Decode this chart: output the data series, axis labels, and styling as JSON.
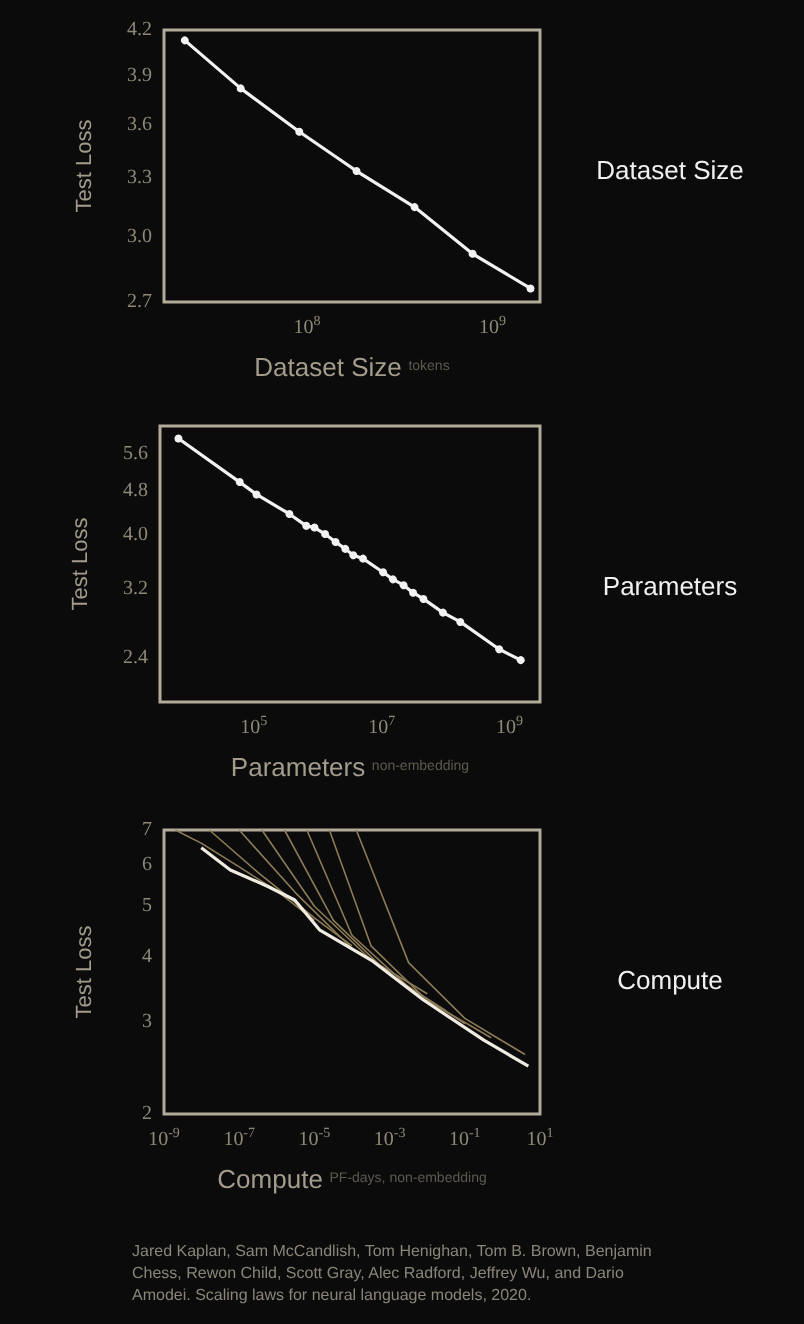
{
  "chart_data": [
    {
      "type": "line",
      "xlabel": "Dataset Size",
      "ylabel": "Test Loss",
      "annotations": [
        "tokens",
        "Dataset Size"
      ],
      "log": "xy",
      "marker": "circle",
      "x": [
        22000000.0,
        44000000.0,
        91000000.0,
        185000000.0,
        380000000.0,
        780000000.0,
        1600000000.0
      ],
      "series": [
        {
          "color": "#f2f2f2",
          "values": [
            4.13,
            3.82,
            3.56,
            3.34,
            3.15,
            2.92,
            2.76
          ]
        }
      ],
      "xlim": [
        17000000.0,
        1800000000.0
      ],
      "ylim": [
        2.7,
        4.2
      ],
      "xticks": [
        {
          "value": 100000000.0,
          "label": "10$^{8}$"
        },
        {
          "value": 1000000000.0,
          "label": "10$^{9}$"
        }
      ],
      "yticks": [
        2.7,
        {
          "value": 3,
          "label": "3.0"
        },
        3.3,
        3.6,
        3.9,
        4.2
      ]
    },
    {
      "type": "line",
      "xlabel": "Parameters",
      "ylabel": "Test Loss",
      "annotations": [
        "non-embedding",
        "Parameters"
      ],
      "log": "xy",
      "marker": "circle",
      "x": [
        6600.0,
        60000.0,
        110000.0,
        360000.0,
        660000.0,
        890000.0,
        1300000.0,
        1900000.0,
        2700000.0,
        3600000.0,
        5100000.0,
        10500000.0,
        15000000.0,
        22000000.0,
        31000000.0,
        45000000.0,
        91000000.0,
        170000000.0,
        690000000.0,
        1500000000.0
      ],
      "series": [
        {
          "color": "#f2f2f2",
          "values": [
            5.98,
            4.99,
            4.74,
            4.37,
            4.16,
            4.13,
            4.02,
            3.89,
            3.78,
            3.68,
            3.63,
            3.43,
            3.33,
            3.25,
            3.15,
            3.07,
            2.9,
            2.79,
            2.49,
            2.38
          ]
        }
      ],
      "xlim": [
        3400.0,
        3000000000.0
      ],
      "ylim": [
        2.0,
        6.3
      ],
      "xticks": [
        {
          "value": 100000.0,
          "label": "10$^{5}$"
        },
        {
          "value": 10000000.0,
          "label": "10$^{7}$"
        },
        {
          "value": 1000000000.0,
          "label": "10$^{9}$"
        }
      ],
      "yticks": [
        2.4,
        3.2,
        {
          "value": 4,
          "label": "4.0"
        },
        4.8,
        5.6
      ]
    },
    {
      "type": "line",
      "xlabel": "Compute",
      "ylabel": "Test Loss",
      "annotations": [
        "PF-days, non-embedding",
        "Compute",
        "Jared Kaplan, Sam McCandlish, Tom Henighan, Tom B. Brown, Benjamin Chess, Rewon Child, Scott Gray, Alec Radford, Jeffrey Wu, and Dario Amodei. Scaling laws for neural language models, 2020."
      ],
      "log": "xy",
      "marker": "none",
      "series": [
        {
          "color": "#8c7b56",
          "x": [
            2e-09,
            1e-08,
            1e-07,
            1e-06,
            1e-05
          ],
          "values": [
            7,
            6.6,
            5.95,
            5.35,
            4.7
          ]
        },
        {
          "color": "#8c7b56",
          "x": [
            1.6e-08,
            3.2e-07,
            1e-05,
            0.0001
          ],
          "values": [
            7,
            5.8,
            4.75,
            4.2
          ]
        },
        {
          "color": "#8c7b56",
          "x": [
            1e-07,
            3.2e-06,
            0.0001,
            0.001
          ],
          "values": [
            7,
            5.3,
            4.15,
            3.75
          ]
        },
        {
          "color": "#8c7b56",
          "x": [
            4e-07,
            1e-05,
            0.00032,
            0.01
          ],
          "values": [
            7,
            5.0,
            3.95,
            3.4
          ]
        },
        {
          "color": "#8c7b56",
          "x": [
            1.6e-06,
            3.2e-05,
            0.001,
            0.032
          ],
          "values": [
            7,
            4.7,
            3.7,
            3.15
          ]
        },
        {
          "color": "#8c7b56",
          "x": [
            6.3e-06,
            0.0001,
            0.0032,
            0.1
          ],
          "values": [
            7,
            4.4,
            3.5,
            2.98
          ]
        },
        {
          "color": "#8c7b56",
          "x": [
            2.5e-05,
            0.00032,
            0.01,
            0.5
          ],
          "values": [
            7,
            4.2,
            3.3,
            2.8
          ]
        },
        {
          "color": "#8c7b56",
          "x": [
            0.00013,
            0.0032,
            0.1,
            4.0
          ],
          "values": [
            7,
            3.9,
            3.05,
            2.6
          ]
        },
        {
          "color": "#f0ebe0",
          "x": [
            9.8e-09,
            5.8e-08,
            6e-07,
            3e-06,
            1.4e-05,
            0.00033,
            0.0078,
            0.32,
            4.9
          ],
          "values": [
            6.47,
            5.87,
            5.45,
            5.14,
            4.5,
            3.94,
            3.31,
            2.77,
            2.47
          ]
        }
      ],
      "xlim": [
        1e-09,
        10
      ],
      "ylim": [
        2,
        7
      ],
      "xticks": [
        {
          "value": 1e-09,
          "label": "10$^{-9}$"
        },
        {
          "value": 1e-07,
          "label": "10$^{-7}$"
        },
        {
          "value": 1e-05,
          "label": "10$^{-5}$"
        },
        {
          "value": 0.001,
          "label": "10$^{-3}$"
        },
        {
          "value": 0.1,
          "label": "10$^{-1}$"
        },
        {
          "value": 10,
          "label": "10$^{1}$"
        }
      ],
      "yticks": [
        2,
        3,
        4,
        5,
        6,
        7
      ]
    }
  ]
}
